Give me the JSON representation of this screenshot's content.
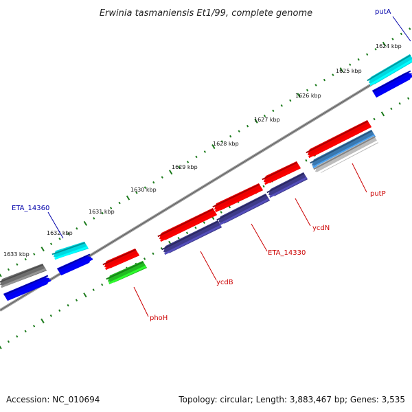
{
  "title": "Erwinia tasmaniensis Et1/99, complete genome",
  "footer": {
    "accession": "Accession: NC_010694",
    "info": "Topology: circular; Length: 3,883,467 bp; Genes: 3,535"
  },
  "colors": {
    "backbone": "#808080",
    "tick": "#1a7a1a",
    "label_forward": "#0000aa",
    "label_reverse": "#cc0000"
  },
  "scale": {
    "unit": "kbp",
    "labels": [
      "1624 kbp",
      "1625 kbp",
      "1626 kbp",
      "1627 kbp",
      "1628 kbp",
      "1629 kbp",
      "1630 kbp",
      "1631 kbp",
      "1632 kbp",
      "1633 kbp"
    ]
  },
  "genes": [
    {
      "name": "putA",
      "strand": "forward",
      "color": "#00e0e0"
    },
    {
      "name": "ETA_14360",
      "strand": "forward",
      "color": "#00e0e0"
    },
    {
      "name": "putP",
      "strand": "reverse",
      "color": "#cc2222"
    },
    {
      "name": "ycdN",
      "strand": "reverse",
      "color": "#cc2222"
    },
    {
      "name": "ETA_14330",
      "strand": "reverse",
      "color": "#cc2222"
    },
    {
      "name": "ycdB",
      "strand": "reverse",
      "color": "#cc2222"
    },
    {
      "name": "phoH",
      "strand": "reverse",
      "color": "#cc2222"
    }
  ]
}
